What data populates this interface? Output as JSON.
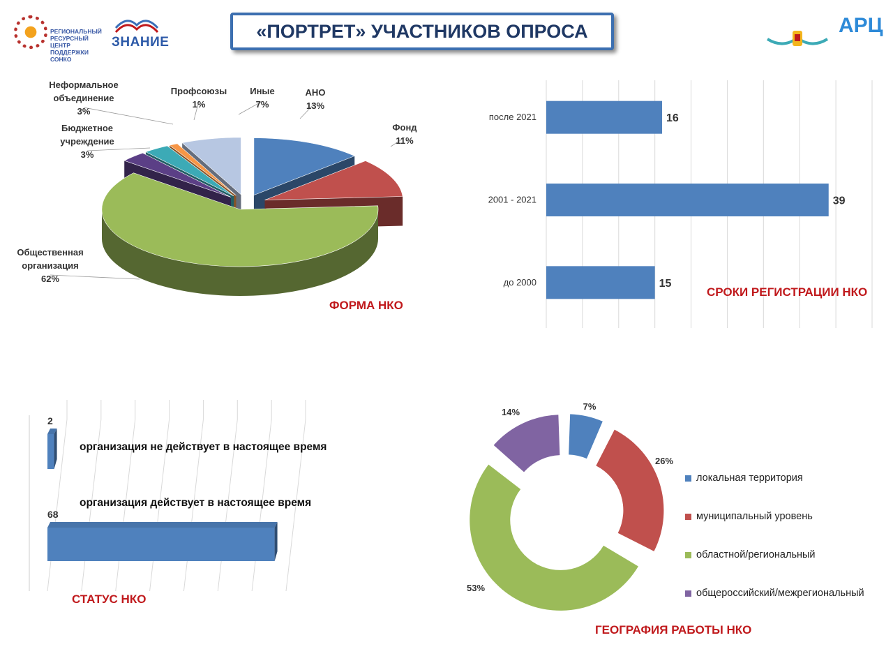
{
  "header": {
    "title": "«ПОРТРЕТ» УЧАСТНИКОВ ОПРОСА",
    "logos": [
      {
        "name": "sonko-logo",
        "text": "РЕГИОНАЛЬНЫЙ РЕСУРСНЫЙ ЦЕНТР ПОДДЕРЖКИ СОНКО"
      },
      {
        "name": "znanie-logo",
        "text": "ЗНАНИЕ"
      },
      {
        "name": "regional-logo",
        "text": ""
      },
      {
        "name": "api-logo",
        "text": "АРЦ"
      }
    ]
  },
  "chart_data": [
    {
      "id": "forma",
      "type": "pie",
      "title": "ФОРМА НКО",
      "slices": [
        {
          "label": "АНО",
          "percent_text": "13%",
          "value": 13,
          "color": "#4f81bd"
        },
        {
          "label": "Фонд",
          "percent_text": "11%",
          "value": 11,
          "color": "#c0504d"
        },
        {
          "label": "Общественная организация",
          "percent_text": "62%",
          "value": 62,
          "color": "#9bbb59"
        },
        {
          "label": "Бюджетное учреждение",
          "percent_text": "3%",
          "value": 3,
          "color": "#5b3f86"
        },
        {
          "label": "Неформальное объединение",
          "percent_text": "3%",
          "value": 3,
          "color": "#3caab6"
        },
        {
          "label": "Профсоюзы",
          "percent_text": "1%",
          "value": 1,
          "color": "#f79646"
        },
        {
          "label": "Иные",
          "percent_text": "7%",
          "value": 7,
          "color": "#b7c7e2"
        }
      ]
    },
    {
      "id": "sroki",
      "type": "bar",
      "orientation": "horizontal",
      "title": "СРОКИ РЕГИСТРАЦИИ НКО",
      "categories": [
        "после 2021",
        "2001 - 2021",
        "до 2000"
      ],
      "values": [
        16,
        39,
        15
      ],
      "value_labels": [
        "16",
        "39",
        "15"
      ],
      "xlim": [
        0,
        45
      ],
      "grid": true,
      "color": "#4f81bd"
    },
    {
      "id": "status",
      "type": "bar",
      "orientation": "horizontal",
      "title": "СТАТУС НКО",
      "categories": [
        "организация не действует в настоящее время",
        "организация действует в настоящее время"
      ],
      "values": [
        2,
        68
      ],
      "value_labels": [
        "2",
        "68"
      ],
      "xlim": [
        0,
        70
      ],
      "grid": true,
      "color": "#4f81bd"
    },
    {
      "id": "geografiya",
      "type": "pie",
      "variant": "donut",
      "title": "ГЕОГРАФИЯ РАБОТЫ НКО",
      "slices": [
        {
          "label": "локальная территория",
          "percent_text": "7%",
          "value": 7,
          "color": "#4f81bd"
        },
        {
          "label": "муниципальный уровень",
          "percent_text": "26%",
          "value": 26,
          "color": "#c0504d"
        },
        {
          "label": "областной/региональный",
          "percent_text": "53%",
          "value": 53,
          "color": "#9bbb59"
        },
        {
          "label": "общероссийский/межрегиональный",
          "percent_text": "14%",
          "value": 14,
          "color": "#8064a2"
        }
      ],
      "legend_position": "right"
    }
  ]
}
